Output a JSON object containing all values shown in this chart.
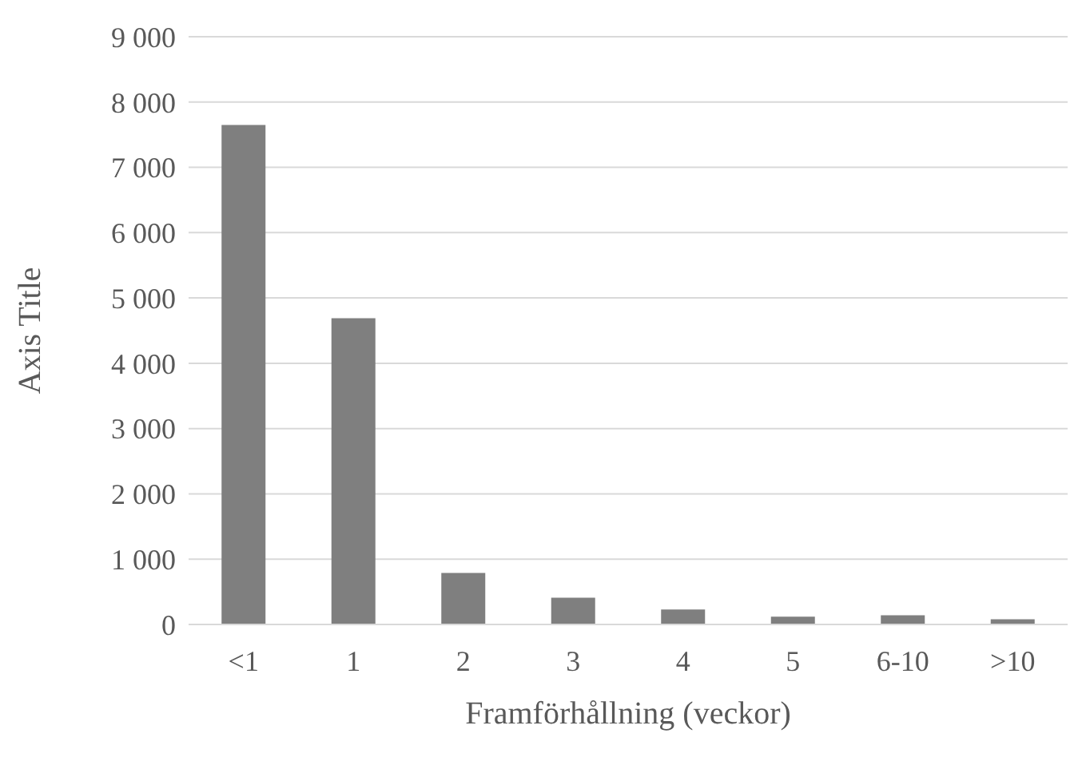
{
  "chart_data": {
    "type": "bar",
    "xlabel": "Framförhållning (veckor)",
    "ylabel": "Axis Title",
    "categories": [
      "<1",
      "1",
      "2",
      "3",
      "4",
      "5",
      "6-10",
      ">10"
    ],
    "values": [
      7650,
      4690,
      790,
      410,
      230,
      120,
      140,
      80
    ],
    "color": "#7f7f7f",
    "ylim": [
      0,
      9000
    ],
    "yticks": [
      {
        "value": 0,
        "label": "0"
      },
      {
        "value": 1000,
        "label": "1 000"
      },
      {
        "value": 2000,
        "label": "2 000"
      },
      {
        "value": 3000,
        "label": "3 000"
      },
      {
        "value": 4000,
        "label": "4 000"
      },
      {
        "value": 5000,
        "label": "5 000"
      },
      {
        "value": 6000,
        "label": "6 000"
      },
      {
        "value": 7000,
        "label": "7 000"
      },
      {
        "value": 8000,
        "label": "8 000"
      },
      {
        "value": 9000,
        "label": "9 000"
      }
    ],
    "grid": "y"
  }
}
